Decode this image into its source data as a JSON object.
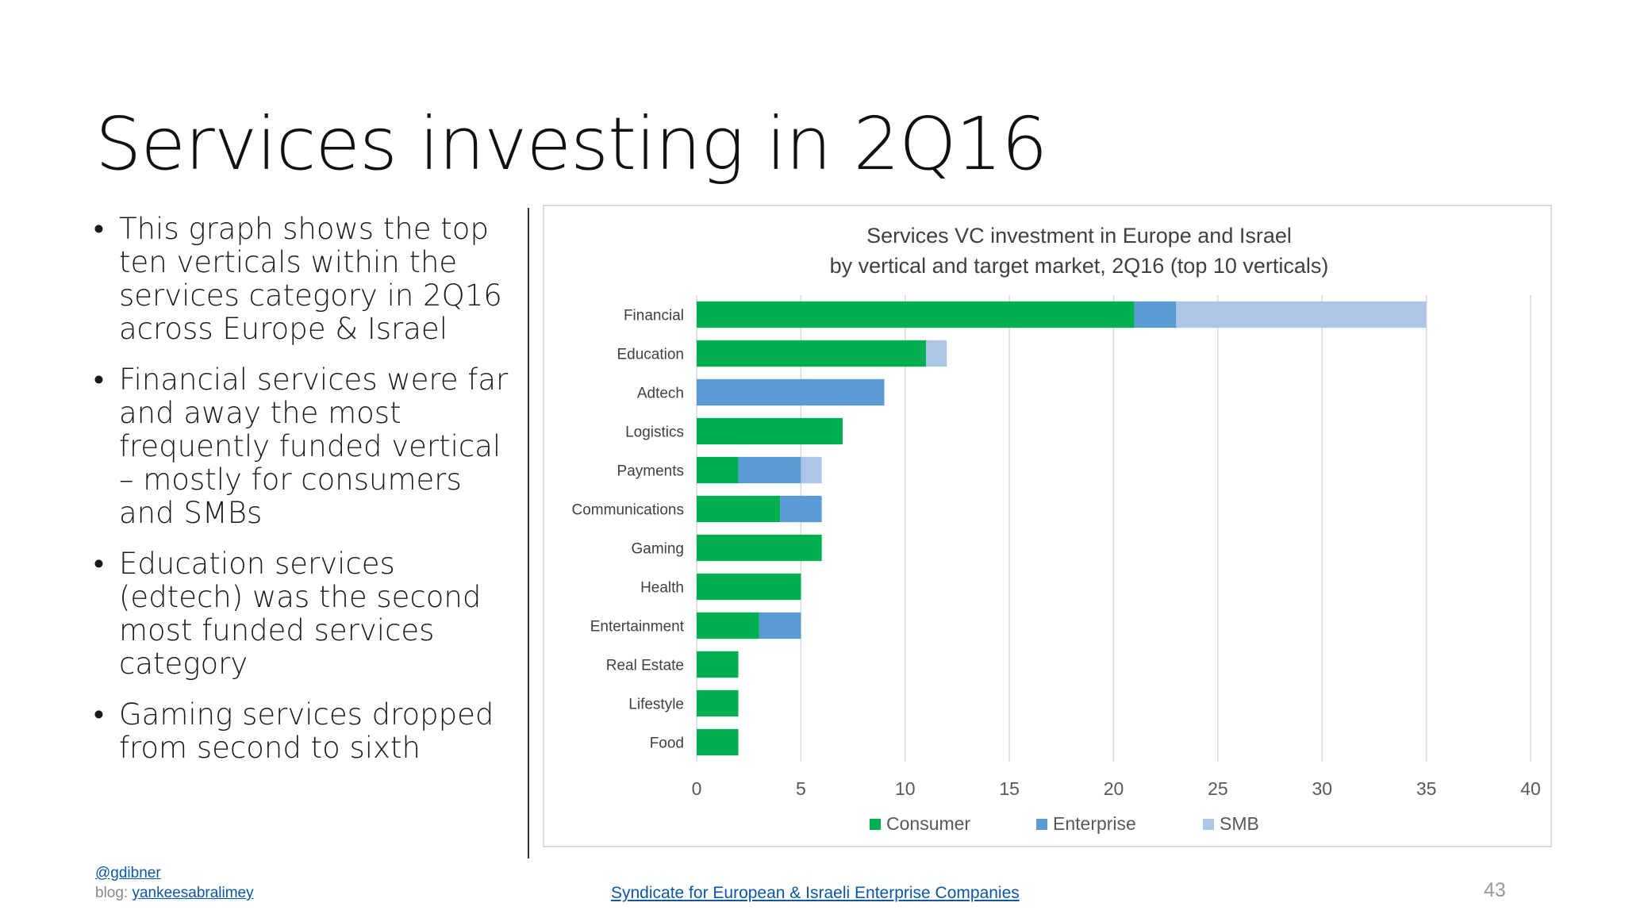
{
  "slide": {
    "title": "Services investing in 2Q16",
    "bullets": [
      "This graph shows the top ten verticals within the services category in 2Q16 across Europe & Israel",
      "Financial services were far and away the most frequently funded vertical – mostly for consumers and SMBs",
      "Education services (edtech) was the second most funded services category",
      "Gaming services dropped from second to sixth"
    ],
    "bullet_glyph": "•",
    "footer": {
      "handle": "@gdibner",
      "blog_label": "blog: ",
      "blog_link": "yankeesabralimey",
      "center_link": "Syndicate for European & Israeli Enterprise Companies",
      "page_number": "43"
    }
  },
  "chart_data": {
    "type": "bar",
    "orientation": "horizontal",
    "stacked": true,
    "title": "Services VC investment in Europe and Israel",
    "subtitle": "by vertical and target market, 2Q16 (top 10 verticals)",
    "xlabel": "",
    "ylabel": "",
    "categories": [
      "Financial",
      "Education",
      "Adtech",
      "Logistics",
      "Payments",
      "Communications",
      "Gaming",
      "Health",
      "Entertainment",
      "Real Estate",
      "Lifestyle",
      "Food"
    ],
    "series": [
      {
        "name": "Consumer",
        "color": "#00b050",
        "values": [
          21,
          11,
          0,
          7,
          2,
          4,
          6,
          5,
          3,
          2,
          2,
          2
        ]
      },
      {
        "name": "Enterprise",
        "color": "#5b9bd5",
        "values": [
          2,
          0,
          9,
          0,
          3,
          2,
          0,
          0,
          2,
          0,
          0,
          0
        ]
      },
      {
        "name": "SMB",
        "color": "#adc6e8",
        "values": [
          12,
          1,
          0,
          0,
          1,
          0,
          0,
          0,
          0,
          0,
          0,
          0
        ]
      }
    ],
    "xlim": [
      0,
      40
    ],
    "xticks": [
      0,
      5,
      10,
      15,
      20,
      25,
      30,
      35,
      40
    ],
    "grid": "vertical",
    "legend": "bottom"
  }
}
